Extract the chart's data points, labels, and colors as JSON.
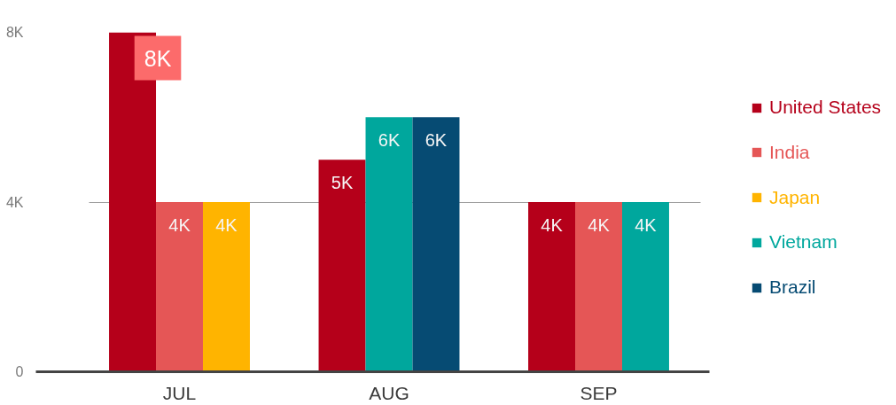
{
  "chart_data": {
    "type": "bar",
    "categories": [
      "JUL",
      "AUG",
      "SEP"
    ],
    "series": [
      {
        "name": "United States",
        "color": "#b5001a",
        "values": [
          8000,
          5000,
          4000
        ],
        "value_labels": [
          "8K",
          "5K",
          "4K"
        ]
      },
      {
        "name": "India",
        "color": "#e55656",
        "values": [
          4000,
          null,
          4000
        ],
        "value_labels": [
          "4K",
          null,
          "4K"
        ]
      },
      {
        "name": "Japan",
        "color": "#ffb400",
        "values": [
          4000,
          null,
          null
        ],
        "value_labels": [
          "4K",
          null,
          null
        ]
      },
      {
        "name": "Vietnam",
        "color": "#00a79d",
        "values": [
          null,
          6000,
          4000
        ],
        "value_labels": [
          null,
          "6K",
          "4K"
        ]
      },
      {
        "name": "Brazil",
        "color": "#064b73",
        "values": [
          null,
          6000,
          null
        ],
        "value_labels": [
          null,
          "6K",
          null
        ]
      }
    ],
    "ylim": [
      0,
      8000
    ],
    "yticks": [
      0,
      {
        "value": 4000,
        "label": "4K"
      },
      {
        "value": 8000,
        "label": "8K"
      }
    ],
    "grid": "y",
    "legend": "right"
  }
}
